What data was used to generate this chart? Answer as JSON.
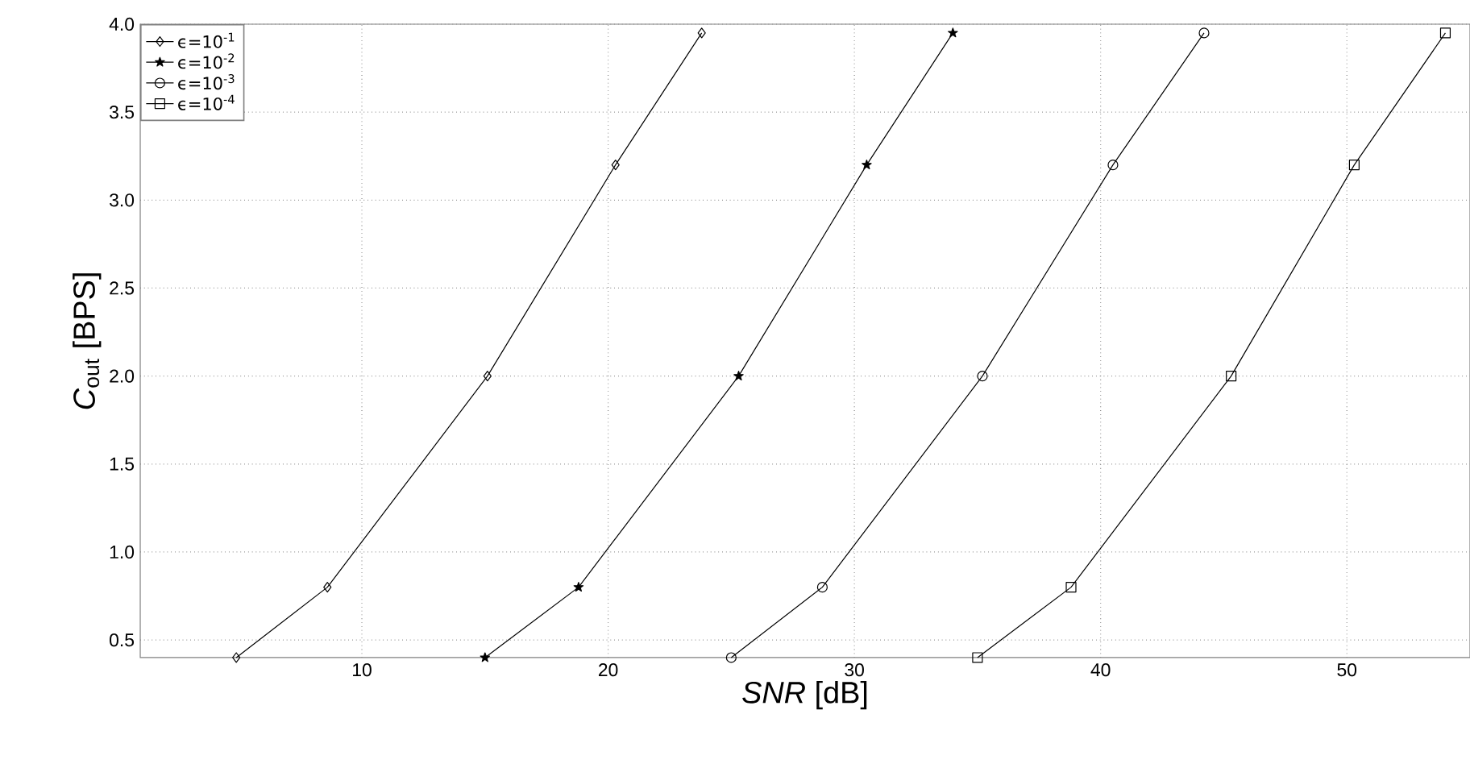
{
  "chart_data": {
    "type": "line",
    "xlabel": "*SNR* [dB]",
    "ylabel": "*C*$_{out}$ [BPS]",
    "xlim": [
      1,
      55
    ],
    "ylim": [
      0.4,
      4.0
    ],
    "xticks": [
      10,
      20,
      30,
      40,
      50
    ],
    "yticks": [
      0.5,
      {
        "value": 1,
        "label": "1.0"
      },
      1.5,
      {
        "value": 2,
        "label": "2.0"
      },
      2.5,
      {
        "value": 3,
        "label": "3.0"
      },
      3.5,
      {
        "value": 4,
        "label": "4.0"
      }
    ],
    "grid": true,
    "legend": "top left",
    "line_style": "solid",
    "series": [
      {
        "name": "ϵ=10$^{-1}$",
        "color": "#000000",
        "marker": "diamond",
        "x": [
          4.9,
          8.6,
          15.1,
          20.3,
          23.8
        ],
        "values": [
          0.4,
          0.8,
          2.0,
          3.2,
          3.95
        ]
      },
      {
        "name": "ϵ=10$^{-2}$",
        "color": "#000000",
        "marker": "star",
        "x": [
          15.0,
          18.8,
          25.3,
          30.5,
          34.0
        ],
        "values": [
          0.4,
          0.8,
          2.0,
          3.2,
          3.95
        ]
      },
      {
        "name": "ϵ=10$^{-3}$",
        "color": "#000000",
        "marker": "circle",
        "x": [
          25.0,
          28.7,
          35.2,
          40.5,
          44.2
        ],
        "values": [
          0.4,
          0.8,
          2.0,
          3.2,
          3.95
        ]
      },
      {
        "name": "ϵ=10$^{-4}$",
        "color": "#000000",
        "marker": "square",
        "x": [
          35.0,
          38.8,
          45.3,
          50.3,
          54.0
        ],
        "values": [
          0.4,
          0.8,
          2.0,
          3.2,
          3.95
        ]
      }
    ]
  }
}
